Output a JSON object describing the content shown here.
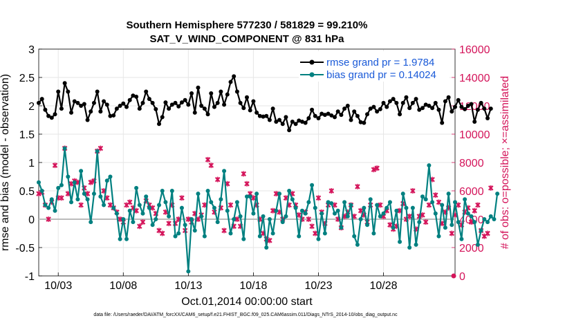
{
  "chart_data": {
    "type": "line",
    "title_line1": "Southern Hemisphere 577230 / 581829 = 99.210%",
    "title_line2": "SAT_V_WIND_COMPONENT @ 831 hPa",
    "ylabel_left": "rmse and bias (model - observation)",
    "ylabel_right": "# of obs: o=possible; ×=assimilated",
    "xlabel": "Oct.01,2014 00:00:00 start",
    "footnote": "data file: /Users/raeder/DAI/ATM_forcXX/CAM6_setup/f.e21.FHIST_BGC.f09_025.CAM6assim.011/Diags_NTrS_2014-10/obs_diag_output.nc",
    "xlim": [
      1.5,
      33.5
    ],
    "ylim_left": [
      -1,
      3
    ],
    "ylim_right": [
      0,
      16000
    ],
    "x_ticks": [
      3,
      8,
      13,
      18,
      23,
      28
    ],
    "x_tick_labels": [
      "10/03",
      "10/08",
      "10/13",
      "10/18",
      "10/23",
      "10/28"
    ],
    "y_left_ticks": [
      "-1",
      "-0.5",
      "0",
      "0.5",
      "1",
      "1.5",
      "2",
      "2.5",
      "3"
    ],
    "y_left_tick_values": [
      -1,
      -0.5,
      0,
      0.5,
      1,
      1.5,
      2,
      2.5,
      3
    ],
    "y_right_ticks": [
      "0",
      "2000",
      "4000",
      "6000",
      "8000",
      "10000",
      "12000",
      "14000",
      "16000"
    ],
    "y_right_tick_values": [
      0,
      2000,
      4000,
      6000,
      8000,
      10000,
      12000,
      14000,
      16000
    ],
    "legend": {
      "rmse_label": "rmse grand pr = 1.9784",
      "bias_label": "bias grand pr = 0.14024",
      "position": "top-right"
    },
    "colors": {
      "rmse": "#000000",
      "bias": "#008080",
      "obs": "#d4145a",
      "zero_line": "#bbbbbb",
      "grid": "#e6e6e6"
    },
    "x_start": 1.5,
    "x_step": 0.25,
    "series": [
      {
        "name": "rmse",
        "values": [
          2.05,
          2.12,
          1.93,
          1.82,
          1.79,
          1.85,
          2.25,
          1.95,
          2.4,
          2.25,
          1.88,
          2.08,
          2.05,
          2.0,
          2.03,
          1.75,
          1.9,
          2.05,
          2.25,
          1.9,
          2.08,
          2.02,
          1.82,
          1.83,
          1.95,
          2.0,
          2.04,
          1.98,
          2.1,
          2.18,
          2.16,
          1.95,
          2.05,
          2.25,
          2.12,
          2.05,
          1.94,
          1.68,
          1.8,
          2.06,
          1.95,
          2.02,
          2.05,
          1.99,
          2.06,
          2.1,
          2.02,
          2.22,
          1.88,
          2.32,
          2.0,
          1.95,
          1.85,
          2.22,
          1.98,
          2.05,
          2.25,
          2.02,
          2.2,
          2.42,
          2.52,
          2.25,
          2.05,
          1.96,
          2.15,
          1.92,
          2.08,
          1.88,
          1.82,
          1.81,
          1.82,
          1.75,
          1.95,
          1.72,
          1.75,
          1.68,
          1.8,
          1.57,
          1.72,
          1.68,
          1.74,
          1.72,
          1.7,
          1.78,
          1.93,
          1.82,
          1.78,
          1.86,
          1.84,
          1.86,
          1.83,
          1.8,
          1.9,
          1.84,
          1.95,
          2.0,
          1.75,
          1.9,
          1.82,
          1.71,
          1.7,
          1.85,
          1.95,
          1.98,
          1.9,
          1.94,
          2.05,
          1.98,
          2.08,
          2.12,
          2.05,
          1.85,
          2.05,
          2.15,
          1.96,
          2.05,
          2.12,
          1.93,
          1.96,
          2.02,
          2.0,
          1.96,
          2.05,
          1.93,
          1.7,
          2.08,
          2.15,
          1.9,
          1.98,
          2.1,
          1.98,
          1.94,
          2.0,
          2.03,
          1.72,
          1.93,
          2.05,
          1.95,
          1.78,
          1.95
        ]
      },
      {
        "name": "bias",
        "values": [
          0.65,
          0.5,
          0.25,
          0.2,
          0.35,
          0.15,
          0.55,
          0.6,
          1.25,
          0.75,
          0.3,
          0.65,
          0.35,
          0.85,
          0.45,
          0.35,
          -0.05,
          0.45,
          1.2,
          0.4,
          0.25,
          0.68,
          0.75,
          0.2,
          0.1,
          -0.35,
          0.0,
          -0.35,
          0.15,
          -0.05,
          0.55,
          0.25,
          0.1,
          0.4,
          0.2,
          -0.1,
          0.0,
          0.25,
          0.5,
          0.3,
          0.05,
          0.5,
          -0.3,
          -0.25,
          0.2,
          -0.1,
          -0.92,
          0.0,
          -0.2,
          0.45,
          0.05,
          -0.3,
          0.5,
          0.3,
          0.2,
          -0.05,
          0.35,
          0.85,
          0.15,
          -0.25,
          0.0,
          0.3,
          0.05,
          -0.35,
          0.4,
          0.4,
          0.1,
          0.45,
          -0.3,
          0.05,
          -0.5,
          0.0,
          -0.25,
          0.15,
          0.45,
          -0.05,
          0.05,
          0.5,
          0.35,
          0.2,
          -0.3,
          0.15,
          0.1,
          0.3,
          0.6,
          0.2,
          -0.35,
          0.1,
          -0.25,
          0.3,
          0.28,
          0.1,
          0.15,
          -0.15,
          0.3,
          0.05,
          0.25,
          -0.3,
          -0.45,
          0.0,
          0.2,
          -0.1,
          0.35,
          -0.25,
          0.25,
          0.05,
          0.1,
          0.2,
          0.3,
          -0.15,
          0.15,
          -0.4,
          0.45,
          0.2,
          -0.5,
          0.2,
          -0.45,
          -0.05,
          0.4,
          0.35,
          0.95,
          0.3,
          0.1,
          -0.3,
          0.25,
          -0.15,
          0.45,
          -0.1,
          0.3,
          -0.05,
          -0.35,
          0.35,
          0.1,
          0.05,
          -0.05,
          -0.45,
          -0.2,
          0.0,
          -0.05,
          0.05,
          0.0,
          0.45
        ]
      },
      {
        "name": "obs_assimilated",
        "values": [
          5800,
          5900,
          5000,
          4000,
          5200,
          7800,
          5500,
          5500,
          9000,
          5800,
          6500,
          6700,
          6600,
          5000,
          6200,
          5800,
          6600,
          6700,
          8800,
          9000,
          6000,
          5500,
          5000,
          4800,
          4500,
          4000,
          3800,
          5000,
          5200,
          4800,
          4600,
          3500,
          3800,
          5300,
          5000,
          4800,
          4400,
          3200,
          3000,
          4500,
          3700,
          5000,
          3700,
          4000,
          5500,
          3200,
          4000,
          3800,
          4400,
          4000,
          4300,
          5000,
          8200,
          7800,
          4500,
          6800,
          4800,
          3200,
          6500,
          5000,
          3500,
          4000,
          3500,
          7200,
          6500,
          5800,
          5500,
          5000,
          4000,
          3000,
          2600,
          2500,
          4600,
          5800,
          4500,
          4000,
          5500,
          5000,
          5800,
          5000,
          4300,
          4000,
          4500,
          4000,
          3500,
          3000,
          5500,
          4500,
          3700,
          5000,
          6000,
          5000,
          4000,
          3400,
          4200,
          4500,
          5000,
          4200,
          6300,
          4600,
          4300,
          3800,
          5000,
          7500,
          7600,
          5000,
          4200,
          4600,
          3600,
          3300,
          3500,
          4600,
          5100,
          4000,
          4200,
          6000,
          3300,
          4200,
          4300,
          3800,
          5000,
          6800,
          5700,
          5200,
          3700,
          4500,
          4800,
          3000,
          4300,
          5000,
          3600,
          4500,
          4800,
          3800,
          4600,
          5000,
          3200,
          2800,
          3000,
          6200
        ]
      }
    ],
    "obs_final_possible_value": 0
  }
}
